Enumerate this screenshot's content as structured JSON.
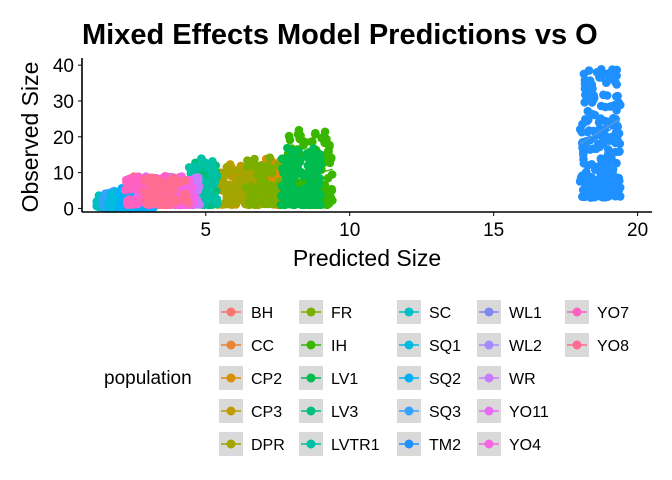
{
  "chart_data": {
    "type": "scatter",
    "title": "Mixed Effects Model Predictions vs O",
    "xlabel": "Predicted Size",
    "ylabel": "Observed Size",
    "xlim": [
      0.7,
      20.5
    ],
    "ylim": [
      -1,
      42
    ],
    "xticks": [
      5,
      10,
      15,
      20
    ],
    "yticks": [
      0,
      10,
      20,
      30,
      40
    ],
    "grid": false,
    "legend": {
      "title": "population",
      "placement": "bottom",
      "columns": [
        [
          "BH",
          "CC",
          "CP2",
          "CP3",
          "DPR"
        ],
        [
          "FR",
          "IH",
          "LV1",
          "LV3",
          "LVTR1"
        ],
        [
          "SC",
          "SQ1",
          "SQ2",
          "SQ3",
          "TM2"
        ],
        [
          "WL1",
          "WL2",
          "WR",
          "YO11",
          "YO4"
        ],
        [
          "YO7",
          "YO8"
        ]
      ]
    },
    "series": [
      {
        "name": "BH",
        "color": "#F8766D",
        "x_range": [
          2.4,
          4.6
        ],
        "y_range": [
          1,
          9
        ],
        "trend": [
          [
            2.4,
            3.0
          ],
          [
            4.6,
            5.0
          ]
        ]
      },
      {
        "name": "CC",
        "color": "#EA8331",
        "x_range": [
          2.6,
          4.4
        ],
        "y_range": [
          1,
          8
        ],
        "trend": [
          [
            2.6,
            3.0
          ],
          [
            4.4,
            4.5
          ]
        ]
      },
      {
        "name": "CP2",
        "color": "#D89000",
        "x_range": [
          6.6,
          7.6
        ],
        "y_range": [
          1,
          14
        ],
        "trend": [
          [
            6.6,
            5.0
          ],
          [
            7.6,
            7.5
          ]
        ]
      },
      {
        "name": "CP3",
        "color": "#C09B00",
        "x_range": [
          5.8,
          7.2
        ],
        "y_range": [
          1,
          14
        ],
        "trend": [
          [
            5.8,
            5.0
          ],
          [
            7.2,
            7.0
          ]
        ]
      },
      {
        "name": "DPR",
        "color": "#A3A500",
        "x_range": [
          5.4,
          7.0
        ],
        "y_range": [
          1,
          12
        ],
        "trend": [
          [
            5.4,
            4.5
          ],
          [
            7.0,
            6.5
          ]
        ]
      },
      {
        "name": "FR",
        "color": "#7CAE00",
        "x_range": [
          6.4,
          7.8
        ],
        "y_range": [
          1,
          15
        ],
        "trend": [
          [
            6.4,
            5.5
          ],
          [
            7.8,
            8.0
          ]
        ]
      },
      {
        "name": "IH",
        "color": "#39B600",
        "x_range": [
          7.8,
          9.4
        ],
        "y_range": [
          1,
          22
        ],
        "trend": [
          [
            7.8,
            7.0
          ],
          [
            9.4,
            11.0
          ]
        ]
      },
      {
        "name": "LV1",
        "color": "#00BB4E",
        "x_range": [
          7.6,
          9.0
        ],
        "y_range": [
          1,
          17
        ],
        "trend": [
          [
            7.6,
            6.5
          ],
          [
            9.0,
            9.5
          ]
        ]
      },
      {
        "name": "LV3",
        "color": "#00BF7D",
        "x_range": [
          4.6,
          5.4
        ],
        "y_range": [
          1,
          13
        ],
        "trend": [
          [
            4.6,
            5.0
          ],
          [
            5.4,
            7.0
          ]
        ]
      },
      {
        "name": "LVTR1",
        "color": "#00C1A3",
        "x_range": [
          4.4,
          5.4
        ],
        "y_range": [
          1,
          14
        ],
        "trend": [
          [
            4.4,
            5.0
          ],
          [
            5.4,
            7.0
          ]
        ]
      },
      {
        "name": "SC",
        "color": "#00BFC4",
        "x_range": [
          1.2,
          2.2
        ],
        "y_range": [
          0,
          4
        ],
        "trend": [
          [
            1.2,
            1.0
          ],
          [
            2.2,
            2.0
          ]
        ]
      },
      {
        "name": "SQ1",
        "color": "#00BAE0",
        "x_range": [
          1.6,
          2.6
        ],
        "y_range": [
          0,
          5
        ],
        "trend": [
          [
            1.6,
            1.5
          ],
          [
            2.6,
            2.5
          ]
        ]
      },
      {
        "name": "SQ2",
        "color": "#00B0F6",
        "x_range": [
          2.0,
          3.2
        ],
        "y_range": [
          0,
          6
        ],
        "trend": [
          [
            2.0,
            2.0
          ],
          [
            3.2,
            3.0
          ]
        ]
      },
      {
        "name": "SQ3",
        "color": "#35A2FF",
        "x_range": [
          1.4,
          2.6
        ],
        "y_range": [
          0,
          5
        ],
        "trend": [
          [
            1.4,
            1.5
          ],
          [
            2.6,
            2.5
          ]
        ]
      },
      {
        "name": "TM2",
        "color": "#1E90FF",
        "x_range": [
          18.0,
          19.4
        ],
        "y_range": [
          3,
          39
        ],
        "trend": [
          [
            18.0,
            16.0
          ],
          [
            19.4,
            24.0
          ]
        ]
      },
      {
        "name": "WL1",
        "color": "#7F87F0",
        "x_range": [
          3.0,
          4.6
        ],
        "y_range": [
          1,
          8
        ],
        "trend": [
          [
            3.0,
            3.0
          ],
          [
            4.6,
            4.5
          ]
        ]
      },
      {
        "name": "WL2",
        "color": "#A58AFF",
        "x_range": [
          3.2,
          4.6
        ],
        "y_range": [
          1,
          9
        ],
        "trend": [
          [
            3.2,
            3.5
          ],
          [
            4.6,
            5.0
          ]
        ]
      },
      {
        "name": "WR",
        "color": "#C77CFF",
        "x_range": [
          3.4,
          4.8
        ],
        "y_range": [
          1,
          9
        ],
        "trend": [
          [
            3.4,
            3.5
          ],
          [
            4.8,
            5.5
          ]
        ]
      },
      {
        "name": "YO11",
        "color": "#E76BF3",
        "x_range": [
          2.6,
          4.2
        ],
        "y_range": [
          1,
          9
        ],
        "trend": [
          [
            2.6,
            3.0
          ],
          [
            4.2,
            4.5
          ]
        ]
      },
      {
        "name": "YO4",
        "color": "#F564E3",
        "x_range": [
          3.4,
          4.6
        ],
        "y_range": [
          1,
          9
        ],
        "trend": [
          [
            3.4,
            3.5
          ],
          [
            4.6,
            5.0
          ]
        ]
      },
      {
        "name": "YO7",
        "color": "#FF61C3",
        "x_range": [
          2.2,
          3.8
        ],
        "y_range": [
          1,
          9
        ],
        "trend": [
          [
            2.2,
            3.0
          ],
          [
            3.8,
            4.5
          ]
        ]
      },
      {
        "name": "YO8",
        "color": "#FF6C91",
        "x_range": [
          2.8,
          4.4
        ],
        "y_range": [
          1,
          9
        ],
        "trend": [
          [
            2.8,
            3.0
          ],
          [
            4.4,
            5.0
          ]
        ]
      }
    ]
  }
}
